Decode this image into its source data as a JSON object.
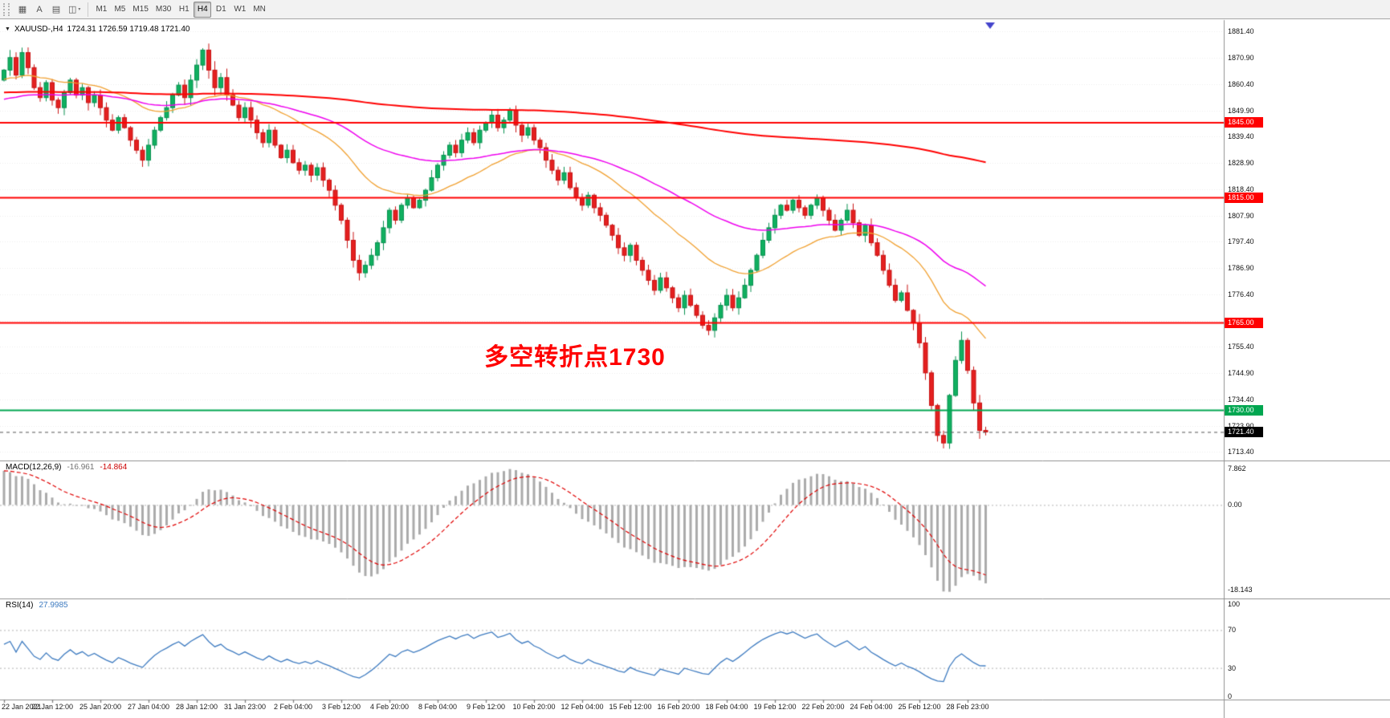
{
  "toolbar": {
    "icon_buttons": [
      {
        "name": "chart-window-icon",
        "glyph": "▦"
      },
      {
        "name": "text-annotation-icon",
        "glyph": "A"
      },
      {
        "name": "chart-layout-icon",
        "glyph": "▤"
      },
      {
        "name": "chart-template-icon",
        "glyph": "◫",
        "caret": true
      }
    ],
    "timeframes": [
      {
        "label": "M1",
        "active": false
      },
      {
        "label": "M5",
        "active": false
      },
      {
        "label": "M15",
        "active": false
      },
      {
        "label": "M30",
        "active": false
      },
      {
        "label": "H1",
        "active": false
      },
      {
        "label": "H4",
        "active": true
      },
      {
        "label": "D1",
        "active": false
      },
      {
        "label": "W1",
        "active": false
      },
      {
        "label": "MN",
        "active": false
      }
    ]
  },
  "chart": {
    "title": "XAUUSD-,H4",
    "ohlc_text": "1724.31 1726.59 1719.48 1721.40",
    "menu_icon_glyph": "▼"
  },
  "macd": {
    "name": "MACD(12,26,9)",
    "value_main": "-16.961",
    "value_signal": "-14.864",
    "axis_labels": [
      "7.862",
      "0.00",
      "-18.143"
    ],
    "params": {
      "fast": 12,
      "slow": 26,
      "signal": 9
    }
  },
  "rsi": {
    "name": "RSI(14)",
    "value": "27.9985",
    "axis_labels": [
      "100",
      "70",
      "30",
      "0"
    ],
    "period": 14,
    "levels": [
      70,
      30
    ]
  },
  "colors": {
    "bull": "#10b060",
    "bull_border": "#089050",
    "bear": "#e42020",
    "bear_border": "#c81414",
    "ma_fast": "#f0a030",
    "ma_mid": "#ee00ee",
    "ma_slow": "#ff0000",
    "line_red": "#ff0000",
    "line_green": "#00a650",
    "current_badge": "#000000",
    "macd_hist": "#ababab",
    "macd_signal": "#e00000",
    "rsi_line": "#3e7bc0",
    "grid": "#ebebeb",
    "separator": "#909090",
    "annotation": "#ff0000",
    "shift_marker": "#4444cc"
  },
  "chart_data": {
    "type": "candlestick",
    "symbol": "XAUUSD-",
    "timeframe": "H4",
    "y_range": [
      1710,
      1886
    ],
    "price_ticks": [
      "1881.40",
      "1870.90",
      "1860.40",
      "1849.90",
      "1839.40",
      "1828.90",
      "1818.40",
      "1807.90",
      "1797.40",
      "1786.90",
      "1776.40",
      "1765.90",
      "1755.40",
      "1744.90",
      "1734.40",
      "1723.90",
      "1713.40"
    ],
    "open_first": 1862,
    "closes": [
      1866,
      1871,
      1864,
      1873,
      1867,
      1859,
      1855,
      1861,
      1854,
      1851,
      1857,
      1862,
      1856,
      1859,
      1853,
      1856,
      1851,
      1846,
      1842,
      1847,
      1843,
      1838,
      1834,
      1830,
      1836,
      1842,
      1847,
      1851,
      1856,
      1860,
      1855,
      1862,
      1868,
      1874,
      1866,
      1859,
      1863,
      1856,
      1852,
      1847,
      1851,
      1846,
      1841,
      1837,
      1842,
      1836,
      1831,
      1834,
      1829,
      1826,
      1828,
      1824,
      1827,
      1822,
      1818,
      1812,
      1806,
      1798,
      1790,
      1785,
      1788,
      1792,
      1797,
      1803,
      1810,
      1806,
      1812,
      1815,
      1811,
      1814,
      1818,
      1823,
      1828,
      1832,
      1836,
      1833,
      1838,
      1841,
      1837,
      1842,
      1845,
      1848,
      1843,
      1846,
      1850,
      1844,
      1840,
      1843,
      1838,
      1835,
      1830,
      1826,
      1822,
      1825,
      1819,
      1815,
      1812,
      1816,
      1811,
      1808,
      1804,
      1800,
      1795,
      1792,
      1796,
      1790,
      1786,
      1782,
      1778,
      1783,
      1779,
      1775,
      1771,
      1776,
      1772,
      1768,
      1764,
      1762,
      1767,
      1772,
      1776,
      1771,
      1775,
      1780,
      1786,
      1792,
      1798,
      1803,
      1808,
      1812,
      1810,
      1814,
      1811,
      1808,
      1812,
      1815,
      1810,
      1806,
      1802,
      1806,
      1810,
      1805,
      1800,
      1804,
      1797,
      1792,
      1786,
      1780,
      1774,
      1777,
      1770,
      1765,
      1757,
      1745,
      1732,
      1720,
      1717,
      1736,
      1750,
      1758,
      1746,
      1733,
      1722,
      1721.4
    ],
    "ma_lines": [
      {
        "name": "ma-fast-orange",
        "alpha": 0.07,
        "seed": 1862
      },
      {
        "name": "ma-mid-magenta",
        "alpha": 0.03,
        "seed": 1854
      },
      {
        "name": "ma-slow-red",
        "alpha": 0.005,
        "seed": 1857
      }
    ],
    "hlines": [
      {
        "price": 1845,
        "label": "1845.00",
        "color": "#ff0000"
      },
      {
        "price": 1815,
        "label": "1815.00",
        "color": "#ff0000"
      },
      {
        "price": 1765,
        "label": "1765.00",
        "color": "#ff0000"
      },
      {
        "price": 1730,
        "label": "1730.00",
        "color": "#00a650"
      }
    ],
    "current_price": {
      "value": 1721.4,
      "label": "1721.40"
    },
    "annotation": {
      "text": "多空转折点1730"
    },
    "time_labels": [
      "22 Jan 2021",
      "22 Jan 12:00",
      "25 Jan 20:00",
      "27 Jan 04:00",
      "28 Jan 12:00",
      "31 Jan 23:00",
      "2 Feb 04:00",
      "3 Feb 12:00",
      "4 Feb 20:00",
      "8 Feb 04:00",
      "9 Feb 12:00",
      "10 Feb 20:00",
      "12 Feb 04:00",
      "15 Feb 12:00",
      "16 Feb 20:00",
      "18 Feb 04:00",
      "19 Feb 12:00",
      "22 Feb 20:00",
      "24 Feb 04:00",
      "25 Feb 12:00",
      "28 Feb 23:00"
    ]
  }
}
